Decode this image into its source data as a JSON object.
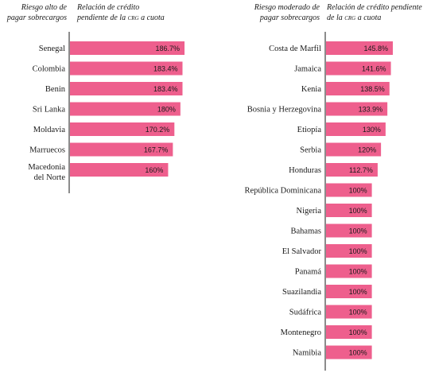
{
  "chart_data": [
    {
      "type": "bar",
      "orientation": "horizontal",
      "header_left": "Riesgo alto de pagar sobrecargos",
      "header_right_pre": "Relación de crédito pendiente de la ",
      "header_right_sc": "crg",
      "header_right_post": " a cuota",
      "categories": [
        "Senegal",
        "Colombia",
        "Benin",
        "Sri Lanka",
        "Moldavia",
        "Marruecos",
        "Macedonia del Norte"
      ],
      "values": [
        186.7,
        183.4,
        183.4,
        180,
        170.2,
        167.7,
        160
      ],
      "labels": [
        "186.7%",
        "183.4%",
        "183.4%",
        "180%",
        "170.2%",
        "167.7%",
        "160%"
      ],
      "bar_color": "#ee5f8d"
    },
    {
      "type": "bar",
      "orientation": "horizontal",
      "header_left": "Riesgo moderado de pagar sobrecargos",
      "header_right_pre": "Relación de crédito pendiente de la ",
      "header_right_sc": "crg",
      "header_right_post": " a cuota",
      "categories": [
        "Costa de Marfil",
        "Jamaica",
        "Kenia",
        "Bosnia y Herzegovina",
        "Etiopía",
        "Serbia",
        "Honduras",
        "República Dominicana",
        "Nigeria",
        "Bahamas",
        "El Salvador",
        "Panamá",
        "Suazilandia",
        "Sudáfrica",
        "Montenegro",
        "Namibia"
      ],
      "values": [
        145.8,
        141.6,
        138.5,
        133.9,
        130,
        120,
        112.7,
        100,
        100,
        100,
        100,
        100,
        100,
        100,
        100,
        100
      ],
      "labels": [
        "145.8%",
        "141.6%",
        "138.5%",
        "133.9%",
        "130%",
        "120%",
        "112.7%",
        "100%",
        "100%",
        "100%",
        "100%",
        "100%",
        "100%",
        "100%",
        "100%",
        "100%"
      ],
      "bar_color": "#ee5f8d"
    }
  ]
}
